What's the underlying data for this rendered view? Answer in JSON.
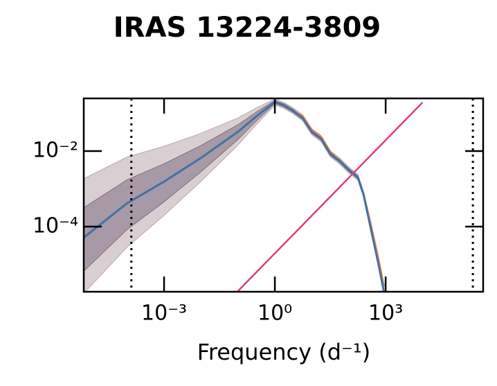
{
  "chart_data": {
    "type": "line",
    "title": "IRAS 13224-3809",
    "xlabel": "Frequency (d⁻¹)",
    "xscale": "log",
    "yscale": "log",
    "xlim": [
      6.68e-06,
      437000
    ],
    "ylim": [
      1.88e-06,
      0.248
    ],
    "xticks": [
      {
        "value": 0.001,
        "label": "10⁻³"
      },
      {
        "value": 1,
        "label": "10⁰"
      },
      {
        "value": 1000,
        "label": "10³"
      }
    ],
    "yticks": [
      {
        "value": 0.01,
        "label": "10⁻²"
      },
      {
        "value": 0.0001,
        "label": "10⁻⁴"
      }
    ],
    "x": [
      6.68e-06,
      0.0001,
      0.001,
      0.01,
      0.1,
      0.316,
      1,
      1.78,
      3.16,
      5.62,
      10,
      17.8,
      31.6,
      56.2,
      100,
      178,
      251,
      398,
      631,
      891
    ],
    "bands": [
      {
        "color": "#b9a7ad",
        "lower": [
          1.7e-06,
          2.87e-05,
          0.000199,
          0.00158,
          0.0144,
          0.0506,
          0.166,
          0.135,
          0.0958,
          0.0633,
          0.027,
          0.0178,
          0.00708,
          0.00458,
          0.00263,
          0.00167,
          0.0006,
          7.25e-05,
          8.9e-06,
          1.58e-06
        ],
        "upper": [
          0.00186,
          0.00698,
          0.0134,
          0.0296,
          0.0752,
          0.139,
          0.24,
          0.194,
          0.138,
          0.0911,
          0.0389,
          0.0257,
          0.0102,
          0.0066,
          0.00379,
          0.0024,
          0.00086,
          0.000104,
          1.28e-05,
          2.3e-06
        ]
      },
      {
        "color": "#7e6d80",
        "lower": [
          6.6e-06,
          8.38e-05,
          0.000454,
          0.00283,
          0.0202,
          0.0628,
          0.182,
          0.147,
          0.105,
          0.069,
          0.0295,
          0.0195,
          0.00773,
          0.005,
          0.00287,
          0.00182,
          0.00065,
          7.9e-05,
          9.7e-06,
          1.73e-06
        ],
        "upper": [
          0.000316,
          0.00174,
          0.00462,
          0.0141,
          0.0495,
          0.108,
          0.219,
          0.178,
          0.127,
          0.0835,
          0.0356,
          0.0235,
          0.00935,
          0.00605,
          0.00348,
          0.0022,
          0.00079,
          9.6e-05,
          1.18e-05,
          2.1e-06
        ]
      }
    ],
    "series": [
      {
        "color": "#f07f2e",
        "values": [
          5.13e-05,
          0.000417,
          0.00155,
          0.00661,
          0.0324,
          0.0832,
          0.2,
          0.162,
          0.115,
          0.085,
          0.036,
          0.024,
          0.0095,
          0.0055,
          0.00316,
          0.002,
          0.00072,
          0.00011,
          1.4e-05,
          2.6e-06
        ]
      },
      {
        "color": "#3f72ab",
        "values": [
          5.13e-05,
          0.000417,
          0.00155,
          0.00661,
          0.0324,
          0.0832,
          0.2,
          0.162,
          0.115,
          0.0759,
          0.0324,
          0.0214,
          0.0085,
          0.0055,
          0.00316,
          0.002,
          0.00072,
          8.7e-05,
          1.07e-05,
          1.9e-06
        ]
      }
    ],
    "powerlaw": {
      "color": "#e33a78",
      "x": [
        0.1,
        10000
      ],
      "values": [
        1.95e-06,
        0.195
      ]
    },
    "vlines": [
      0.00013,
      230000
    ]
  }
}
